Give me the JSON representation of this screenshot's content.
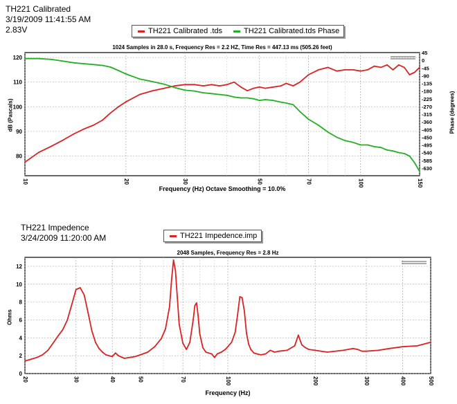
{
  "chart_data": [
    {
      "type": "line",
      "header": [
        "TH221 Calibrated",
        "3/19/2009 11:41:55 AM",
        "2.83V"
      ],
      "legend": [
        "TH221 Calibrated .tds",
        "TH221 Calibrated.tds Phase"
      ],
      "subtitle": "1024 Samples in 28.0 s, Frequency Res = 2.2 HZ, Time Res = 447.13 ms (505.26 feet)",
      "xlabel": "Frequency (Hz) Octave Smoothing = 10.0%",
      "ylabel": "dB (Pascals)",
      "ylabel_right": "Phase (degrees)",
      "xscale": "log",
      "xlim": [
        10,
        150
      ],
      "ylim": [
        72,
        122
      ],
      "y2lim": [
        -675,
        45
      ],
      "grid": true,
      "xticks": [
        10,
        20,
        30,
        40,
        50,
        60,
        70,
        80,
        90,
        100,
        150
      ],
      "xtick_labels": {
        "10": "10",
        "20": "20",
        "30": "30",
        "50": "50",
        "70": "70",
        "100": "100",
        "150": "150"
      },
      "yticks": [
        80,
        90,
        100,
        110,
        120
      ],
      "y2ticks": [
        45,
        0,
        -45,
        -90,
        -135,
        -180,
        -225,
        -270,
        -315,
        -360,
        -405,
        -450,
        -495,
        -540,
        -585,
        -630
      ],
      "series": [
        {
          "name": "TH221 Calibrated .tds",
          "color": "#dd2020",
          "axis": "left",
          "x": [
            10,
            11,
            12,
            13,
            14,
            15,
            16,
            17,
            18,
            19,
            20,
            22,
            24,
            26,
            28,
            30,
            32,
            34,
            36,
            38,
            40,
            42,
            44,
            46,
            48,
            50,
            52,
            55,
            58,
            60,
            63,
            66,
            70,
            75,
            80,
            85,
            90,
            95,
            100,
            105,
            110,
            115,
            120,
            125,
            130,
            135,
            140,
            145,
            150
          ],
          "y": [
            77.5,
            81.5,
            84,
            86.5,
            89,
            91,
            92.5,
            94.5,
            97.5,
            100,
            102,
            105,
            106.5,
            107.5,
            108.5,
            109,
            109,
            108.5,
            109,
            108.5,
            109,
            110,
            108,
            106.5,
            107.5,
            108,
            107.5,
            108,
            108.5,
            109.5,
            108.5,
            110,
            113,
            115,
            116,
            114.5,
            115,
            115,
            114.5,
            115,
            116.5,
            116,
            117,
            115,
            117,
            116,
            113,
            114,
            116
          ]
        },
        {
          "name": "TH221 Calibrated.tds Phase",
          "color": "#20b020",
          "axis": "right",
          "x": [
            10,
            11,
            12,
            13,
            14,
            15,
            16,
            17,
            18,
            19,
            20,
            22,
            24,
            26,
            28,
            30,
            32,
            34,
            36,
            38,
            40,
            42,
            44,
            46,
            48,
            50,
            52,
            55,
            58,
            60,
            63,
            66,
            70,
            75,
            80,
            85,
            90,
            95,
            100,
            105,
            110,
            115,
            120,
            125,
            130,
            135,
            140,
            145,
            150
          ],
          "y": [
            10,
            10,
            5,
            -5,
            -15,
            -20,
            -25,
            -30,
            -40,
            -60,
            -80,
            -110,
            -125,
            -140,
            -160,
            -175,
            -180,
            -190,
            -195,
            -200,
            -205,
            -215,
            -220,
            -220,
            -225,
            -235,
            -230,
            -235,
            -245,
            -250,
            -260,
            -300,
            -345,
            -380,
            -420,
            -450,
            -470,
            -480,
            -495,
            -495,
            -505,
            -510,
            -525,
            -530,
            -540,
            -545,
            -560,
            -600,
            -650
          ]
        }
      ]
    },
    {
      "type": "line",
      "header": [
        "TH221 Impedence",
        "3/24/2009 11:20:00 AM"
      ],
      "legend": [
        "TH221 Impedence.imp"
      ],
      "subtitle": "2048 Samples, Frequency Res = 2.8 Hz",
      "xlabel": "Frequency (Hz)",
      "ylabel": "Ohms",
      "xscale": "log",
      "xlim": [
        20,
        500
      ],
      "ylim": [
        0,
        13
      ],
      "grid": true,
      "xticks": [
        20,
        30,
        40,
        50,
        60,
        70,
        80,
        90,
        100,
        200,
        300,
        400,
        500
      ],
      "xtick_labels": {
        "20": "20",
        "30": "30",
        "40": "40",
        "50": "50",
        "70": "70",
        "100": "100",
        "200": "200",
        "300": "300",
        "400": "400",
        "500": "500"
      },
      "yticks": [
        0,
        2,
        4,
        6,
        8,
        10,
        12
      ],
      "series": [
        {
          "name": "TH221 Impedence.imp",
          "color": "#dd2020",
          "x": [
            20,
            21,
            22,
            23,
            24,
            25,
            26,
            27,
            28,
            29,
            30,
            31,
            32,
            33,
            34,
            35,
            36,
            37,
            38,
            39,
            40,
            41,
            42,
            44,
            46,
            48,
            50,
            53,
            56,
            59,
            61,
            63,
            64,
            65,
            66,
            67,
            68,
            70,
            72,
            74,
            76,
            77,
            78,
            79,
            80,
            82,
            84,
            86,
            88,
            90,
            92,
            95,
            98,
            100,
            103,
            106,
            108,
            110,
            112,
            114,
            116,
            118,
            120,
            123,
            126,
            130,
            135,
            140,
            145,
            150,
            160,
            170,
            175,
            178,
            180,
            185,
            190,
            200,
            220,
            250,
            270,
            280,
            290,
            300,
            330,
            360,
            400,
            450,
            500
          ],
          "y": [
            1.4,
            1.6,
            1.8,
            2.1,
            2.6,
            3.4,
            4.2,
            4.9,
            6.0,
            7.7,
            9.4,
            9.6,
            8.8,
            6.8,
            4.8,
            3.5,
            2.8,
            2.4,
            2.1,
            2.0,
            1.9,
            2.3,
            2.0,
            1.7,
            1.8,
            1.9,
            2.1,
            2.4,
            3.0,
            3.9,
            5.0,
            7.5,
            10.5,
            12.7,
            11.5,
            8.5,
            5.5,
            3.4,
            2.7,
            3.5,
            6.0,
            7.6,
            7.9,
            6.5,
            4.5,
            2.9,
            2.4,
            2.3,
            2.2,
            1.8,
            2.2,
            2.4,
            2.7,
            3.0,
            3.5,
            4.6,
            6.5,
            8.6,
            8.5,
            7.0,
            4.5,
            3.3,
            2.7,
            2.3,
            2.2,
            2.1,
            2.2,
            2.6,
            2.4,
            2.5,
            2.6,
            3.1,
            4.3,
            3.6,
            3.2,
            2.9,
            2.7,
            2.6,
            2.4,
            2.6,
            2.8,
            2.7,
            2.5,
            2.5,
            2.6,
            2.8,
            3.0,
            3.1,
            3.5
          ]
        }
      ]
    }
  ]
}
